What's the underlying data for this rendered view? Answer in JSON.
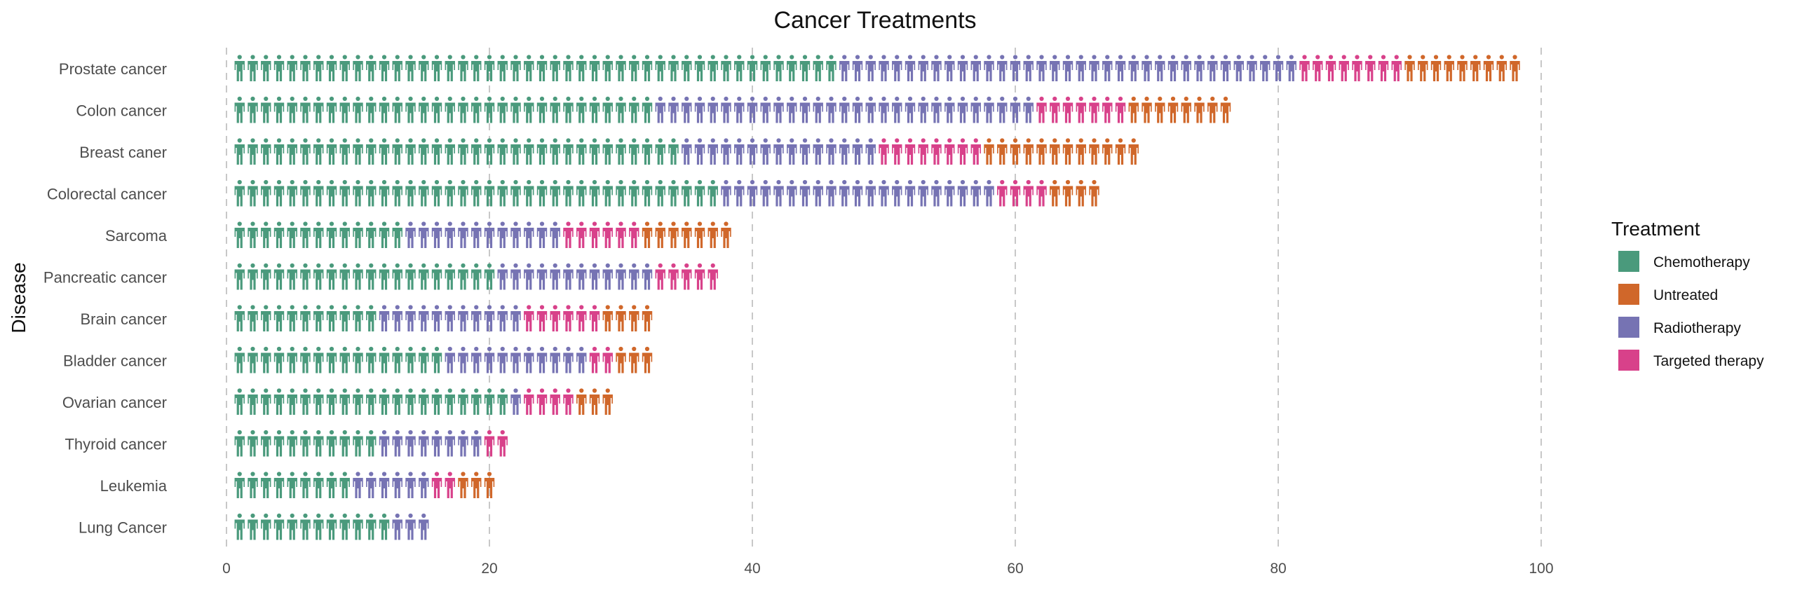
{
  "chart_data": {
    "type": "bar",
    "subtype": "pictogram",
    "title": "Cancer Treatments",
    "xlabel": "",
    "ylabel": "Disease",
    "xlim": [
      0,
      100
    ],
    "xticks": [
      0,
      20,
      40,
      60,
      80,
      100
    ],
    "grid": "vertical dashed",
    "legend_title": "Treatment",
    "legend_position": "right",
    "categories": [
      "Prostate cancer",
      "Colon cancer",
      "Breast caner",
      "Colorectal cancer",
      "Sarcoma",
      "Pancreatic cancer",
      "Brain cancer",
      "Bladder cancer",
      "Ovarian cancer",
      "Thyroid cancer",
      "Leukemia",
      "Lung Cancer"
    ],
    "series": [
      {
        "name": "Chemotherapy",
        "color": "#4a9a7c",
        "values": [
          46,
          32,
          34,
          37,
          13,
          20,
          11,
          16,
          21,
          11,
          9,
          12
        ]
      },
      {
        "name": "Untreated",
        "color": "#d0672a",
        "values": [
          9,
          8,
          12,
          4,
          7,
          0,
          4,
          3,
          3,
          0,
          3,
          0
        ]
      },
      {
        "name": "Radiotherapy",
        "color": "#7673b3",
        "values": [
          35,
          29,
          15,
          21,
          12,
          12,
          11,
          11,
          1,
          8,
          6,
          3
        ]
      },
      {
        "name": "Targeted therapy",
        "color": "#d8418a",
        "values": [
          8,
          7,
          8,
          4,
          6,
          5,
          6,
          2,
          4,
          2,
          2,
          0
        ]
      }
    ],
    "stack_order": [
      "Chemotherapy",
      "Radiotherapy",
      "Targeted therapy",
      "Untreated"
    ]
  }
}
